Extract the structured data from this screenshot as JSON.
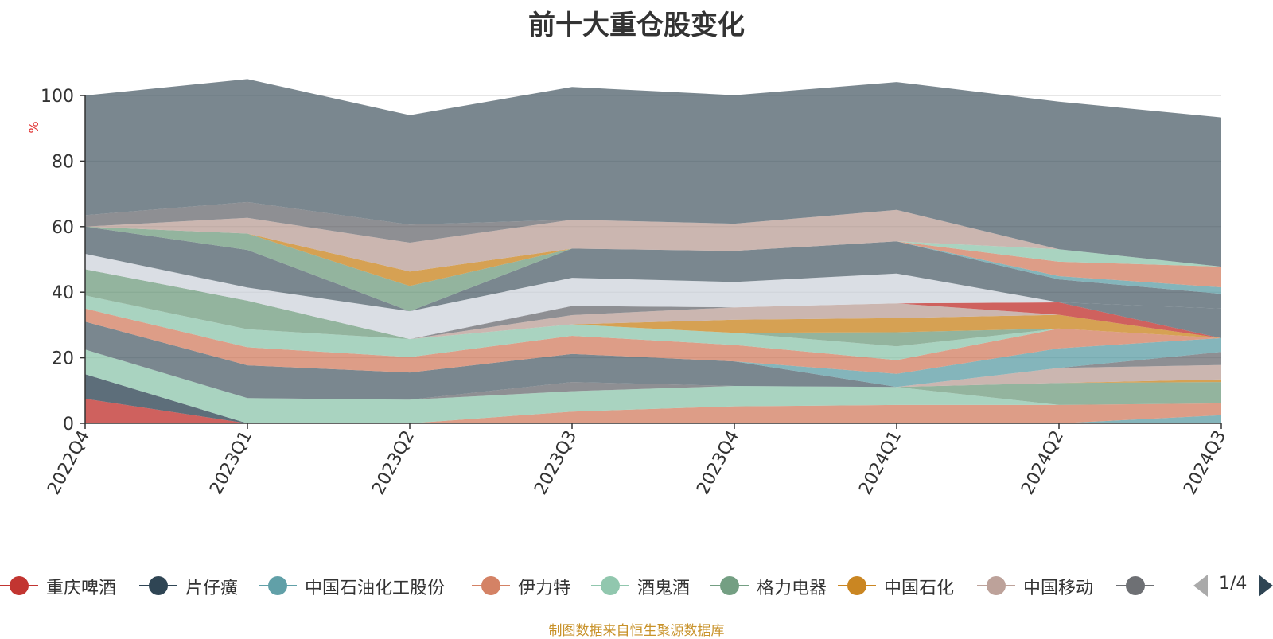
{
  "chart_data": {
    "type": "area",
    "title": "前十大重仓股变化",
    "ylabel": "%",
    "ylim": [
      0,
      100
    ],
    "y_ticks": [
      "0",
      "20",
      "40",
      "60",
      "80",
      "100"
    ],
    "categories": [
      "2022Q4",
      "2023Q1",
      "2023Q2",
      "2023Q3",
      "2023Q4",
      "2024Q1",
      "2024Q2",
      "2024Q3"
    ],
    "grid": true,
    "legend_position": "bottom",
    "stacking": "stacked",
    "series": [
      {
        "name": "重庆啤酒",
        "color": "#c23531",
        "values": [
          7.5,
          0,
          0,
          0,
          0,
          0,
          0,
          0
        ]
      },
      {
        "name": "片仔癀",
        "color": "#2f4554",
        "values": [
          7.5,
          0,
          0,
          0,
          0,
          0,
          0,
          0
        ]
      },
      {
        "name": "中国石油化工股份",
        "color": "#61a0a8",
        "values": [
          0,
          0,
          0,
          0,
          0,
          0,
          0,
          2.5
        ]
      },
      {
        "name": "伊力特",
        "color": "#d48265",
        "values": [
          0,
          0,
          0,
          3.6,
          5.2,
          5.6,
          5.6,
          3.6
        ]
      },
      {
        "name": "酒鬼酒",
        "color": "#91c7ae",
        "values": [
          7.5,
          7.7,
          7.2,
          6.2,
          6.2,
          5.5,
          0,
          0
        ]
      },
      {
        "name": "格力电器",
        "color": "#749f83",
        "values": [
          0,
          0,
          0,
          0,
          0,
          0,
          6.7,
          6.5
        ]
      },
      {
        "name": "中国石化",
        "color": "#ca8622",
        "values": [
          0,
          0,
          0,
          0,
          0,
          0,
          0,
          0.8
        ]
      },
      {
        "name": "中国移动",
        "color": "#bda29a",
        "values": [
          0,
          0,
          0,
          0,
          0,
          0,
          4.6,
          4.4
        ]
      },
      {
        "name": "",
        "color": "#6e7074",
        "values": [
          0,
          0,
          0,
          2.8,
          0,
          0,
          0,
          4.0
        ]
      },
      {
        "name": "",
        "color": "#546570",
        "values": [
          8.5,
          10.0,
          8.3,
          8.6,
          7.5,
          0,
          0,
          0
        ]
      },
      {
        "name": "",
        "color": "#61a0a8",
        "values": [
          0,
          0,
          0,
          0,
          0,
          4.0,
          6.0,
          4.2
        ]
      },
      {
        "name": "",
        "color": "#d48265",
        "values": [
          4.0,
          5.5,
          4.7,
          5.5,
          5.0,
          4.2,
          6.0,
          0
        ]
      },
      {
        "name": "",
        "color": "#91c7ae",
        "values": [
          4.0,
          5.5,
          5.5,
          3.5,
          3.7,
          4.2,
          0,
          0
        ]
      },
      {
        "name": "",
        "color": "#749f83",
        "values": [
          8.0,
          8.7,
          0,
          0,
          0,
          4.3,
          0,
          0
        ]
      },
      {
        "name": "",
        "color": "#ca8622",
        "values": [
          0,
          0,
          0,
          0,
          4.0,
          4.3,
          4.2,
          0
        ]
      },
      {
        "name": "",
        "color": "#bda29a",
        "values": [
          0,
          0,
          0,
          2.8,
          3.8,
          4.5,
          0,
          0
        ]
      },
      {
        "name": "",
        "color": "#6e7074",
        "values": [
          0,
          0,
          0,
          2.8,
          0,
          0,
          0,
          0
        ]
      },
      {
        "name": "",
        "color": "#c23531",
        "values": [
          0,
          0,
          0,
          0,
          0,
          0,
          3.8,
          0
        ]
      },
      {
        "name": "",
        "color": "#546570",
        "values": [
          0,
          0,
          0,
          0,
          0,
          0,
          0,
          9.0
        ]
      },
      {
        "name": "",
        "color": "#d0d5dc",
        "values": [
          4.7,
          4.0,
          8.5,
          8.6,
          7.7,
          9.1,
          0,
          0
        ]
      },
      {
        "name": "",
        "color": "#546570",
        "values": [
          8.3,
          11.5,
          0,
          8.9,
          9.5,
          9.8,
          7.0,
          4.5
        ]
      },
      {
        "name": "",
        "color": "#61a0a8",
        "values": [
          0,
          0,
          0,
          0,
          0,
          0,
          1.0,
          2.0
        ]
      },
      {
        "name": "",
        "color": "#d48265",
        "values": [
          0,
          0,
          0,
          0,
          0,
          0,
          4.4,
          6.3
        ]
      },
      {
        "name": "",
        "color": "#91c7ae",
        "values": [
          0,
          0,
          0,
          0,
          0,
          0,
          3.8,
          0
        ]
      },
      {
        "name": "",
        "color": "#749f83",
        "values": [
          0,
          5.0,
          7.7,
          0,
          0,
          0,
          0,
          0
        ]
      },
      {
        "name": "",
        "color": "#ca8622",
        "values": [
          0,
          0,
          4.4,
          0,
          0,
          0,
          0,
          0
        ]
      },
      {
        "name": "",
        "color": "#bda29a",
        "values": [
          0,
          4.8,
          8.8,
          8.8,
          8.3,
          9.6,
          0,
          0
        ]
      },
      {
        "name": "",
        "color": "#6e7074",
        "values": [
          3.5,
          4.8,
          5.5,
          0,
          0,
          0,
          0,
          0
        ]
      },
      {
        "name": "",
        "color": "#546570",
        "values": [
          36.5,
          37.5,
          33.4,
          40.5,
          39.2,
          39.0,
          45.0,
          45.5
        ]
      }
    ]
  },
  "legend": {
    "items": [
      {
        "label": "重庆啤酒",
        "color": "#c23531"
      },
      {
        "label": "片仔癀",
        "color": "#2f4554"
      },
      {
        "label": "中国石油化工股份",
        "color": "#61a0a8"
      },
      {
        "label": "伊力特",
        "color": "#d48265"
      },
      {
        "label": "酒鬼酒",
        "color": "#91c7ae"
      },
      {
        "label": "格力电器",
        "color": "#749f83"
      },
      {
        "label": "中国石化",
        "color": "#ca8622"
      },
      {
        "label": "中国移动",
        "color": "#bda29a"
      },
      {
        "label": "",
        "color": "#6e7074"
      }
    ],
    "page_indicator": "1/4"
  },
  "source_note": "制图数据来自恒生聚源数据库"
}
